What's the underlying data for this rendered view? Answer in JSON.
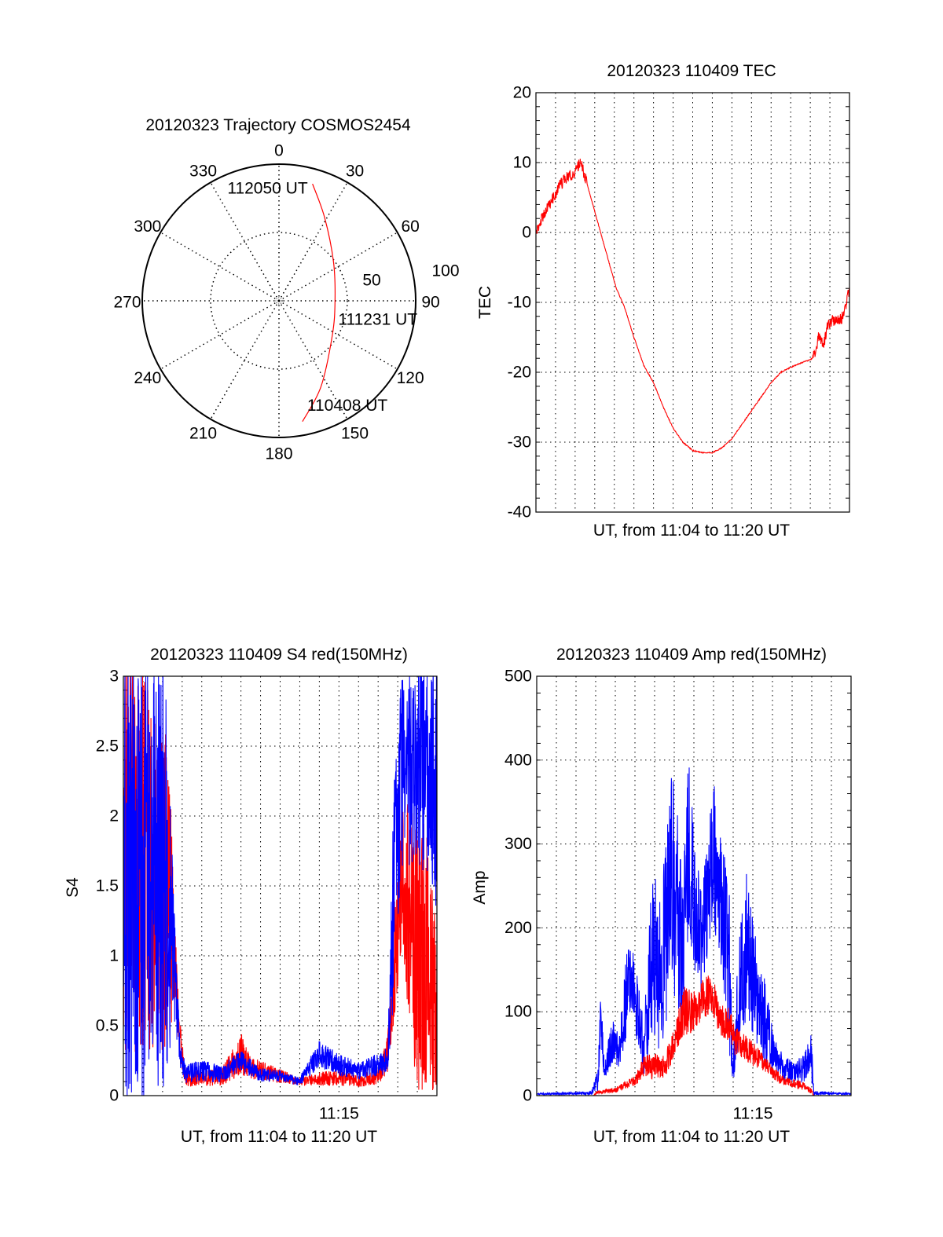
{
  "colors": {
    "red": "#ff0000",
    "blue": "#0000ff",
    "axis": "#000000"
  },
  "chart_data": [
    {
      "type": "polar",
      "title": "20120323 Trajectory COSMOS2454",
      "azimuth_ticks": [
        "0",
        "30",
        "60",
        "90",
        "120",
        "150",
        "180",
        "210",
        "240",
        "270",
        "300",
        "330"
      ],
      "radial_ticks": [
        "50",
        "100"
      ],
      "rlim": [
        0,
        100
      ],
      "grid": true,
      "series": [
        {
          "name": "trajectory",
          "color": "red",
          "points_az_r": [
            [
              169,
              90
            ],
            [
              154,
              70
            ],
            [
              123,
              46.5
            ],
            [
              90,
              41
            ],
            [
              54.5,
              49
            ],
            [
              28.7,
              69.5
            ],
            [
              16,
              89
            ]
          ]
        }
      ],
      "annotations": [
        {
          "text": "110408 UT",
          "az": 169,
          "r": 90
        },
        {
          "text": "111231 UT",
          "az": 90,
          "r": 41
        },
        {
          "text": "112050 UT",
          "az": 16,
          "r": 89
        }
      ]
    },
    {
      "type": "line",
      "title": "20120323 110409 TEC",
      "xlabel": "UT, from 11:04 to 11:20 UT",
      "ylabel": "TEC",
      "xlim_minutes_from_1104": [
        0,
        16
      ],
      "ylim": [
        -40,
        20
      ],
      "yticks": [
        "20",
        "10",
        "0",
        "-10",
        "-20",
        "-30",
        "-40"
      ],
      "ytick_values": [
        20,
        10,
        0,
        -10,
        -20,
        -30,
        -40
      ],
      "xtick_labels": [],
      "grid": true,
      "series": [
        {
          "name": "TEC",
          "color": "red",
          "x": [
            0,
            0.3,
            0.6,
            1,
            1.3,
            1.6,
            2,
            2.28,
            2.6,
            3,
            3.3,
            3.7,
            4.1,
            4.5,
            5,
            5.5,
            6,
            6.5,
            7,
            7.5,
            8,
            8.5,
            9,
            9.5,
            10,
            10.5,
            11,
            11.5,
            12,
            12.5,
            13,
            13.5,
            14,
            14.2,
            14.4,
            14.7,
            14.9,
            15.2,
            15.5,
            15.7,
            16
          ],
          "y": [
            0,
            2,
            3.5,
            5.5,
            7,
            8,
            8.5,
            10.2,
            7,
            3,
            0,
            -4,
            -8,
            -10.5,
            -15,
            -19,
            -21.5,
            -25,
            -28,
            -30,
            -31.2,
            -31.5,
            -31.5,
            -30.8,
            -29.5,
            -27.5,
            -25.5,
            -23.5,
            -21.5,
            -20,
            -19.3,
            -18.7,
            -18.2,
            -17.8,
            -15,
            -16,
            -13,
            -12.5,
            -12.5,
            -12,
            -8
          ]
        }
      ]
    },
    {
      "type": "line",
      "title": "20120323 110409 S4 red(150MHz)",
      "xlabel": "UT, from 11:04 to 11:20 UT",
      "ylabel": "S4",
      "xlim_minutes_from_1104": [
        0,
        16
      ],
      "ylim": [
        0,
        3
      ],
      "yticks": [
        "3",
        "2.5",
        "2",
        "1.5",
        "1",
        "0.5",
        "0"
      ],
      "ytick_values": [
        3,
        2.5,
        2,
        1.5,
        1,
        0.5,
        0
      ],
      "xtick_labels": [
        {
          "label": "11:15",
          "minute": 11
        }
      ],
      "grid": true,
      "series_note": "envelopes as [minute, mean, noise half-range]",
      "series": [
        {
          "name": "red",
          "color": "red",
          "envelope": [
            [
              0,
              1.8,
              1.5
            ],
            [
              2.3,
              1.5,
              1.2
            ],
            [
              2.6,
              1.0,
              0.3
            ],
            [
              2.9,
              0.4,
              0.15
            ],
            [
              3.2,
              0.12,
              0.06
            ],
            [
              5,
              0.13,
              0.06
            ],
            [
              6,
              0.3,
              0.15
            ],
            [
              6.5,
              0.2,
              0.08
            ],
            [
              8,
              0.14,
              0.05
            ],
            [
              9,
              0.1,
              0.03
            ],
            [
              10,
              0.12,
              0.05
            ],
            [
              11,
              0.13,
              0.06
            ],
            [
              12,
              0.1,
              0.04
            ],
            [
              13,
              0.14,
              0.06
            ],
            [
              13.5,
              0.3,
              0.15
            ],
            [
              13.8,
              0.9,
              0.4
            ],
            [
              14.2,
              1.6,
              0.6
            ],
            [
              15,
              1.0,
              1.0
            ],
            [
              16,
              1.0,
              1.0
            ]
          ]
        },
        {
          "name": "blue",
          "color": "blue",
          "envelope": [
            [
              0,
              1.6,
              1.7
            ],
            [
              2.0,
              1.6,
              1.6
            ],
            [
              2.3,
              1.4,
              1.2
            ],
            [
              2.6,
              0.9,
              0.4
            ],
            [
              2.9,
              0.3,
              0.1
            ],
            [
              3.2,
              0.15,
              0.07
            ],
            [
              4,
              0.18,
              0.08
            ],
            [
              5,
              0.15,
              0.06
            ],
            [
              6,
              0.25,
              0.08
            ],
            [
              7,
              0.15,
              0.05
            ],
            [
              8,
              0.14,
              0.04
            ],
            [
              9,
              0.1,
              0.03
            ],
            [
              10,
              0.3,
              0.1
            ],
            [
              11,
              0.22,
              0.08
            ],
            [
              12,
              0.18,
              0.06
            ],
            [
              13,
              0.22,
              0.08
            ],
            [
              13.5,
              0.25,
              0.1
            ],
            [
              13.8,
              1.5,
              0.8
            ],
            [
              14.2,
              2.3,
              0.7
            ],
            [
              15,
              2.4,
              0.7
            ],
            [
              16,
              2.2,
              0.9
            ]
          ]
        }
      ]
    },
    {
      "type": "line",
      "title": "20120323 110409 Amp red(150MHz)",
      "xlabel": "UT, from 11:04 to 11:20 UT",
      "ylabel": "Amp",
      "xlim_minutes_from_1104": [
        0,
        16
      ],
      "ylim": [
        0,
        500
      ],
      "yticks": [
        "500",
        "400",
        "300",
        "200",
        "100",
        "0"
      ],
      "ytick_values": [
        500,
        400,
        300,
        200,
        100,
        0
      ],
      "xtick_labels": [
        {
          "label": "11:15",
          "minute": 11
        }
      ],
      "grid": true,
      "series_note": "envelopes as [minute, mean, noise half-range]",
      "series": [
        {
          "name": "blue",
          "color": "blue",
          "envelope": [
            [
              0,
              2,
              1
            ],
            [
              2.8,
              3,
              2
            ],
            [
              3.1,
              20,
              15
            ],
            [
              3.27,
              90,
              40
            ],
            [
              3.45,
              30,
              10
            ],
            [
              3.9,
              70,
              30
            ],
            [
              4.2,
              50,
              20
            ],
            [
              4.66,
              140,
              60
            ],
            [
              5.2,
              100,
              40
            ],
            [
              5.46,
              50,
              30
            ],
            [
              5.86,
              180,
              110
            ],
            [
              6.3,
              140,
              90
            ],
            [
              6.9,
              260,
              140
            ],
            [
              7.4,
              180,
              100
            ],
            [
              7.72,
              290,
              120
            ],
            [
              8.0,
              230,
              90
            ],
            [
              8.4,
              180,
              60
            ],
            [
              8.98,
              290,
              90
            ],
            [
              9.4,
              230,
              80
            ],
            [
              9.8,
              150,
              100
            ],
            [
              9.98,
              30,
              20
            ],
            [
              10.3,
              120,
              70
            ],
            [
              10.64,
              180,
              90
            ],
            [
              11.2,
              120,
              60
            ],
            [
              11.6,
              90,
              50
            ],
            [
              12.1,
              50,
              20
            ],
            [
              12.6,
              30,
              15
            ],
            [
              13.5,
              30,
              15
            ],
            [
              13.97,
              50,
              30
            ],
            [
              14.1,
              3,
              2
            ],
            [
              16,
              2,
              1
            ]
          ]
        },
        {
          "name": "red",
          "color": "red",
          "envelope": [
            [
              0,
              0,
              0
            ],
            [
              2.9,
              0,
              0
            ],
            [
              3.0,
              3,
              2
            ],
            [
              4,
              7,
              3
            ],
            [
              5,
              18,
              6
            ],
            [
              5.5,
              35,
              15
            ],
            [
              6.5,
              35,
              15
            ],
            [
              7,
              60,
              20
            ],
            [
              7.5,
              100,
              30
            ],
            [
              8,
              100,
              25
            ],
            [
              8.5,
              115,
              25
            ],
            [
              8.9,
              125,
              25
            ],
            [
              9.3,
              90,
              20
            ],
            [
              9.8,
              85,
              20
            ],
            [
              10.1,
              65,
              20
            ],
            [
              10.5,
              60,
              15
            ],
            [
              11,
              50,
              15
            ],
            [
              11.5,
              40,
              10
            ],
            [
              12,
              28,
              8
            ],
            [
              12.5,
              18,
              6
            ],
            [
              13.5,
              12,
              5
            ],
            [
              14,
              5,
              3
            ],
            [
              14.1,
              0,
              0
            ],
            [
              16,
              0,
              0
            ]
          ]
        }
      ]
    }
  ]
}
